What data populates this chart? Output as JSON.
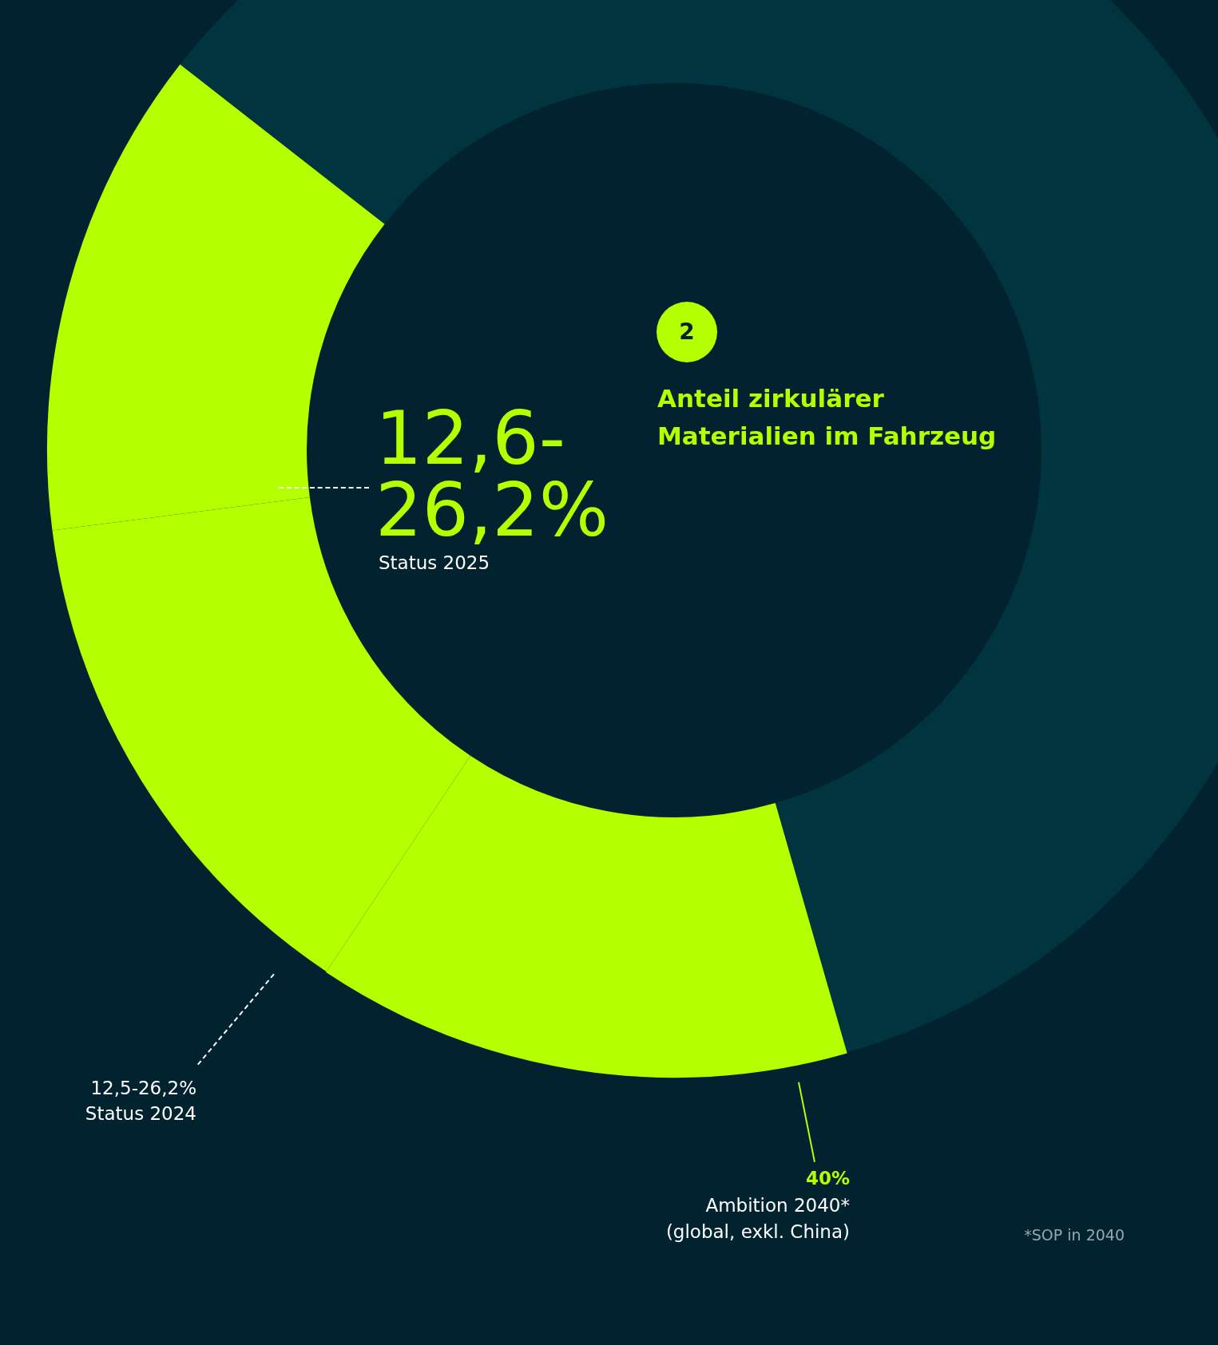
{
  "chart_data": {
    "type": "donut",
    "title": "Anteil zirkulärer Materialien im Fahrzeug",
    "categories": [
      null,
      null,
      null,
      null
    ],
    "values": [
      12.6,
      13.6,
      13.8,
      60
    ],
    "colors": [
      "#b4ff00",
      "#b4ff00",
      "#b4ff00",
      "#00343f"
    ],
    "annotations": [
      "2",
      "12,6-26,2%",
      "Status 2025",
      "12,5-26,2%",
      "Status 2024",
      "40%",
      "Ambition 2040*",
      "(global, exkl. China)",
      "*SOP in 2040"
    ]
  }
}
